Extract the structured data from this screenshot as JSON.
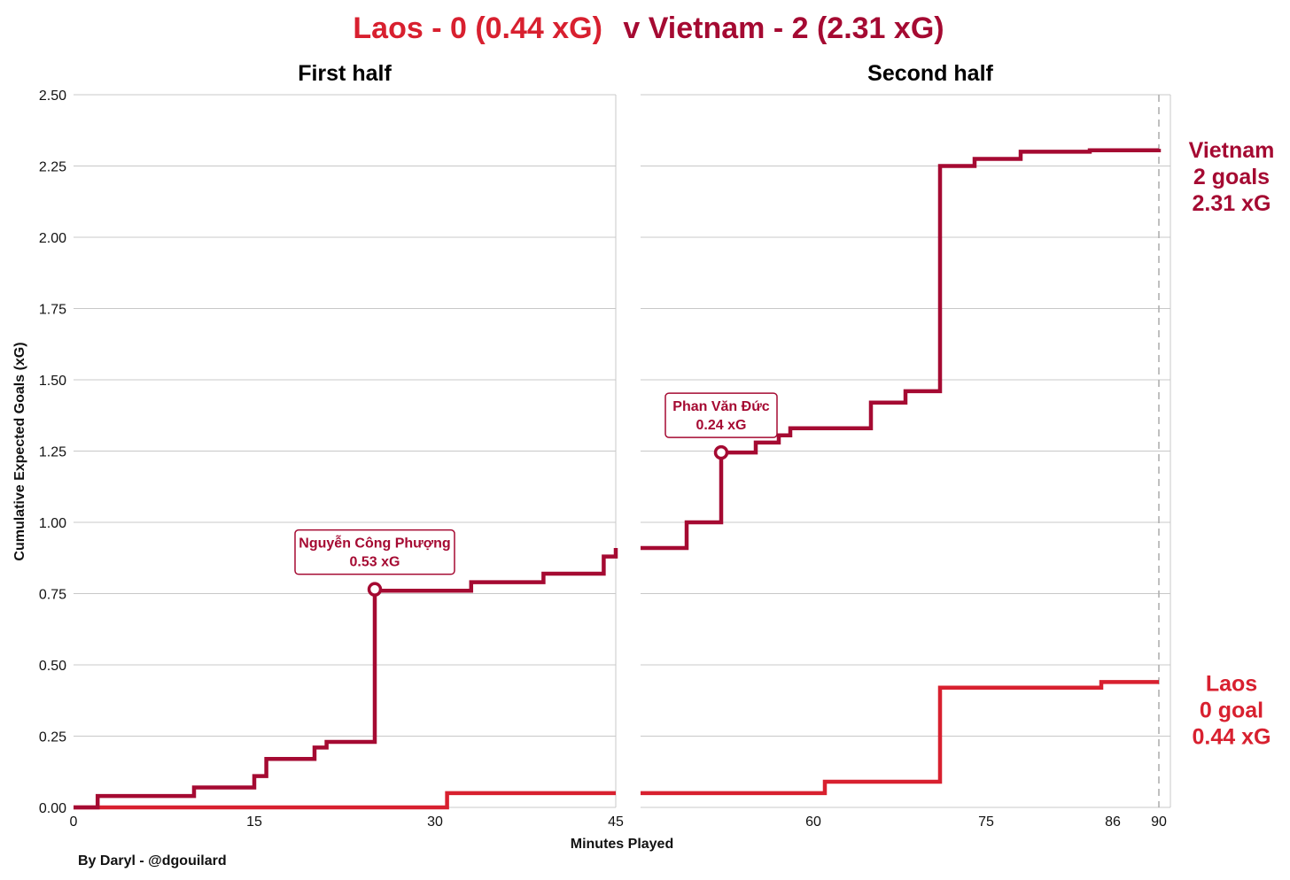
{
  "colors": {
    "vietnam": "#A50A32",
    "laos": "#D8202F",
    "grid": "#c8c8c8",
    "text": "#111111"
  },
  "title": {
    "laos_part": "Laos - 0 (0.44 xG)",
    "vietnam_part": "v Vietnam - 2 (2.31 xG)"
  },
  "caption": "By Daryl - @dgouilard",
  "chart_data": {
    "type": "line",
    "step": "post",
    "xlabel": "Minutes Played",
    "ylabel": "Cumulative Expected Goals (xG)",
    "ylim": [
      0,
      2.5
    ],
    "y_ticks": [
      "0.00",
      "0.25",
      "0.50",
      "0.75",
      "1.00",
      "1.25",
      "1.50",
      "1.75",
      "2.00",
      "2.25",
      "2.50"
    ],
    "grid": true,
    "legend": "none (series labeled at right end)",
    "facets": [
      {
        "title": "First half",
        "xlim": [
          0,
          45
        ],
        "x_ticks": [
          "0",
          "15",
          "30",
          "45"
        ],
        "series": [
          {
            "key": "vietnam",
            "x": [
              0,
              2,
              10,
              15,
              16,
              20,
              21,
              25,
              33,
              39,
              44,
              45
            ],
            "y": [
              0,
              0.04,
              0.07,
              0.11,
              0.17,
              0.21,
              0.23,
              0.76,
              0.79,
              0.82,
              0.88,
              0.91
            ]
          },
          {
            "key": "laos",
            "x": [
              0,
              31,
              45
            ],
            "y": [
              0,
              0.05,
              0.05
            ]
          }
        ],
        "annotations": [
          {
            "series": "vietnam",
            "x": 25,
            "y": 0.765,
            "text": [
              "Nguyễn Công Phượng",
              "0.53 xG"
            ]
          }
        ]
      },
      {
        "title": "Second half",
        "xlim": [
          45,
          91
        ],
        "x_ticks": [
          "60",
          "75",
          "86",
          "90"
        ],
        "dashed_vline": 90,
        "series": [
          {
            "key": "vietnam",
            "x": [
              45,
              49,
              52,
              55,
              57,
              58,
              60,
              65,
              68,
              71,
              74,
              78,
              84,
              90
            ],
            "y": [
              0.91,
              1.0,
              1.245,
              1.28,
              1.305,
              1.33,
              1.33,
              1.42,
              1.46,
              2.25,
              2.275,
              2.3,
              2.305,
              2.31
            ]
          },
          {
            "key": "laos",
            "x": [
              45,
              61,
              71,
              85,
              90
            ],
            "y": [
              0.05,
              0.09,
              0.42,
              0.44,
              0.44
            ]
          }
        ],
        "annotations": [
          {
            "series": "vietnam",
            "x": 52,
            "y": 1.245,
            "text": [
              "Phan Văn Đức",
              "0.24 xG"
            ]
          }
        ]
      }
    ],
    "end_labels": [
      {
        "key": "vietnam",
        "lines": [
          "Vietnam",
          "2 goals",
          "2.31 xG"
        ]
      },
      {
        "key": "laos",
        "lines": [
          "Laos",
          "0 goal",
          "0.44 xG"
        ]
      }
    ]
  }
}
